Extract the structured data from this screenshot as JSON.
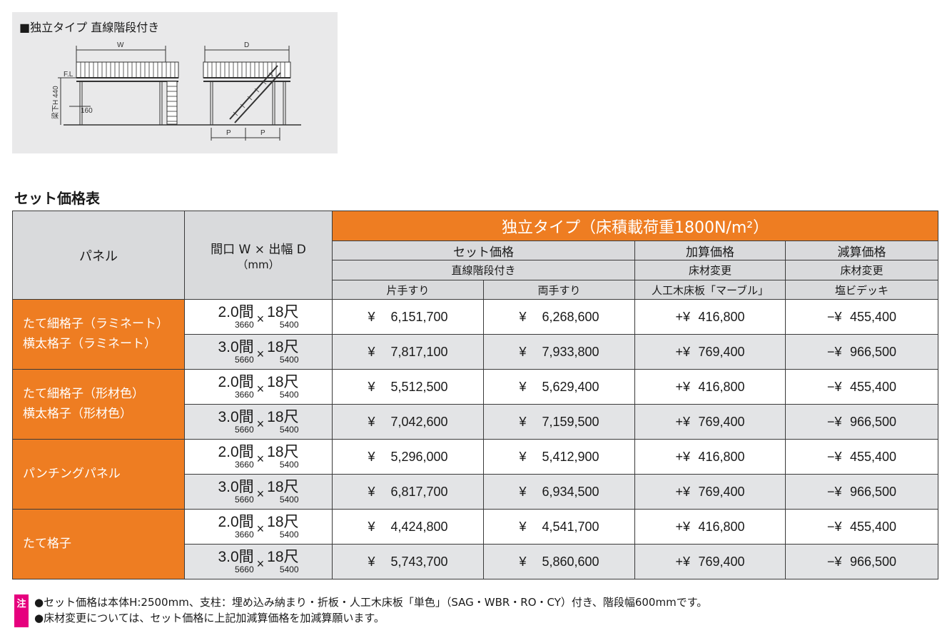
{
  "diagram": {
    "title": "■独立タイプ 直線階段付き",
    "labels": {
      "w": "W",
      "d": "D",
      "fl": "F.L",
      "h440": "梁下H 440",
      "d160": "160",
      "p1": "P",
      "p2": "P"
    }
  },
  "section_title": "セット価格表",
  "table": {
    "header": {
      "panel": "パネル",
      "size_line1": "間口 W × 出幅 D",
      "size_line2": "（mm）",
      "type_title": "独立タイプ（床積載荷重1800N/m²）",
      "set_price": "セット価格",
      "add_price": "加算価格",
      "sub_price": "減算価格",
      "set_sub": "直線階段付き",
      "add_sub": "床材変更",
      "sub_sub": "床材変更",
      "one_rail": "片手すり",
      "two_rail": "両手すり",
      "add_material": "人工木床板「マーブル」",
      "sub_material": "塩ビデッキ"
    },
    "groups": [
      {
        "panel": [
          "たて細格子（ラミネート）",
          "横太格子（ラミネート）"
        ],
        "rows": [
          {
            "w": "2.0間",
            "w_mm": "3660",
            "x": "×",
            "d": "18尺",
            "d_mm": "5400",
            "one_prefix": "¥",
            "one": "6,151,700",
            "two_prefix": "¥",
            "two": "6,268,600",
            "add_prefix": "+¥",
            "add": "416,800",
            "sub_prefix": "−¥",
            "sub": "455,400"
          },
          {
            "w": "3.0間",
            "w_mm": "5660",
            "x": "×",
            "d": "18尺",
            "d_mm": "5400",
            "one_prefix": "¥",
            "one": "7,817,100",
            "two_prefix": "¥",
            "two": "7,933,800",
            "add_prefix": "+¥",
            "add": "769,400",
            "sub_prefix": "−¥",
            "sub": "966,500"
          }
        ]
      },
      {
        "panel": [
          "たて細格子（形材色）",
          "横太格子（形材色）"
        ],
        "rows": [
          {
            "w": "2.0間",
            "w_mm": "3660",
            "x": "×",
            "d": "18尺",
            "d_mm": "5400",
            "one_prefix": "¥",
            "one": "5,512,500",
            "two_prefix": "¥",
            "two": "5,629,400",
            "add_prefix": "+¥",
            "add": "416,800",
            "sub_prefix": "−¥",
            "sub": "455,400"
          },
          {
            "w": "3.0間",
            "w_mm": "5660",
            "x": "×",
            "d": "18尺",
            "d_mm": "5400",
            "one_prefix": "¥",
            "one": "7,042,600",
            "two_prefix": "¥",
            "two": "7,159,500",
            "add_prefix": "+¥",
            "add": "769,400",
            "sub_prefix": "−¥",
            "sub": "966,500"
          }
        ]
      },
      {
        "panel": [
          "パンチングパネル"
        ],
        "rows": [
          {
            "w": "2.0間",
            "w_mm": "3660",
            "x": "×",
            "d": "18尺",
            "d_mm": "5400",
            "one_prefix": "¥",
            "one": "5,296,000",
            "two_prefix": "¥",
            "two": "5,412,900",
            "add_prefix": "+¥",
            "add": "416,800",
            "sub_prefix": "−¥",
            "sub": "455,400"
          },
          {
            "w": "3.0間",
            "w_mm": "5660",
            "x": "×",
            "d": "18尺",
            "d_mm": "5400",
            "one_prefix": "¥",
            "one": "6,817,700",
            "two_prefix": "¥",
            "two": "6,934,500",
            "add_prefix": "+¥",
            "add": "769,400",
            "sub_prefix": "−¥",
            "sub": "966,500"
          }
        ]
      },
      {
        "panel": [
          "たて格子"
        ],
        "rows": [
          {
            "w": "2.0間",
            "w_mm": "3660",
            "x": "×",
            "d": "18尺",
            "d_mm": "5400",
            "one_prefix": "¥",
            "one": "4,424,800",
            "two_prefix": "¥",
            "two": "4,541,700",
            "add_prefix": "+¥",
            "add": "416,800",
            "sub_prefix": "−¥",
            "sub": "455,400"
          },
          {
            "w": "3.0間",
            "w_mm": "5660",
            "x": "×",
            "d": "18尺",
            "d_mm": "5400",
            "one_prefix": "¥",
            "one": "5,743,700",
            "two_prefix": "¥",
            "two": "5,860,600",
            "add_prefix": "+¥",
            "add": "769,400",
            "sub_prefix": "−¥",
            "sub": "966,500"
          }
        ]
      }
    ]
  },
  "notes": {
    "badge": "注",
    "lines": [
      "●セット価格は本体H:2500mm、支柱：埋め込み納まり・折板・人工木床板「単色」（SAG・WBR・RO・CY）付き、階段幅600mmです。",
      "●床材変更については、セット価格に上記加減算価格を加減算願います。"
    ]
  },
  "colors": {
    "orange": "#ee7d22",
    "header_gray": "#d9dadc",
    "row_alt": "#e3e4e6",
    "note_badge": "#e6007e"
  }
}
